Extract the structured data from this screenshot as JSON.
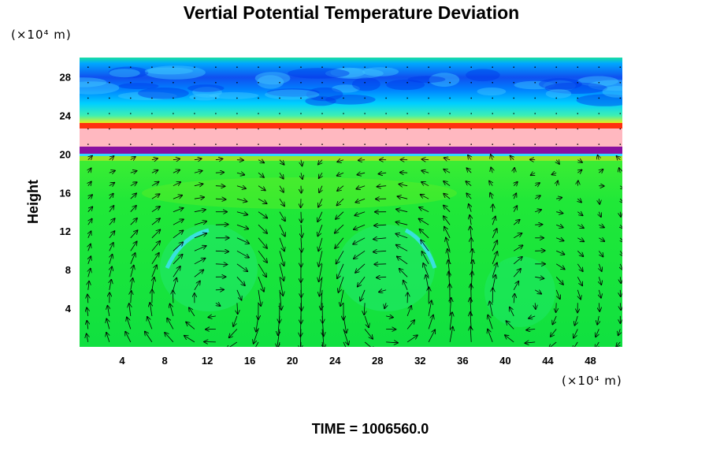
{
  "chart_data": {
    "type": "heatmap",
    "title": "Vertial Potential Temperature Deviation",
    "ylabel": "Height",
    "y_unit": "(×10⁴ m)",
    "x_unit": "(×10⁴ m)",
    "x_ticks": [
      "4",
      "8",
      "12",
      "16",
      "20",
      "24",
      "28",
      "32",
      "36",
      "40",
      "44",
      "48"
    ],
    "y_ticks": [
      "4",
      "8",
      "12",
      "16",
      "20",
      "24",
      "28"
    ],
    "xlim": [
      0,
      51
    ],
    "ylim": [
      0,
      30
    ],
    "overlay": "velocity-vectors",
    "time_label": "TIME = 1006560.0",
    "colors": {
      "background_field": "#10e33b",
      "upper_field": "#00c8ff",
      "cold_core": "#0030e0",
      "warm_band": "#ff2a00",
      "pink_layer": "#ffb8c0",
      "purple_layer": "#8a10a0",
      "arrow": "#000000"
    }
  }
}
